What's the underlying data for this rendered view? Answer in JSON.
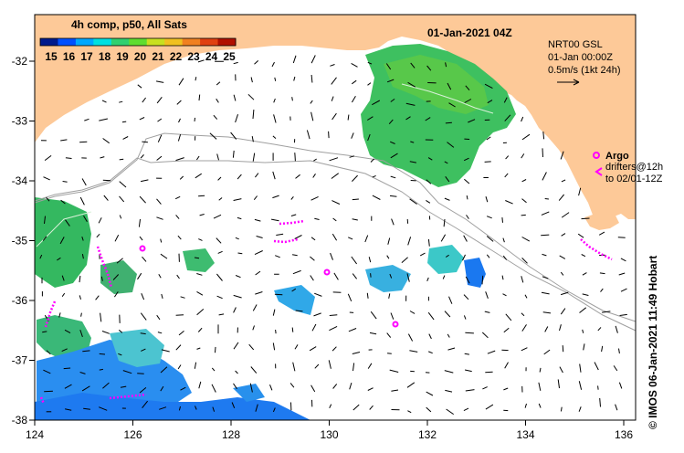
{
  "title": {
    "date": "01-Jan-2021 04Z"
  },
  "colorbar": {
    "title": "4h comp, p50, All Sats",
    "labels": [
      "15",
      "16",
      "17",
      "18",
      "19",
      "20",
      "21",
      "22",
      "23",
      "24",
      "25"
    ],
    "colors": [
      "#001a8c",
      "#0050ff",
      "#00a8ff",
      "#00e0e0",
      "#30d070",
      "#60dd30",
      "#c8e020",
      "#f0c020",
      "#f08020",
      "#e04010",
      "#b01000"
    ]
  },
  "current_info": {
    "line1": "NRT00 GSL",
    "line2": "01-Jan 00:00Z",
    "line3": "0.5m/s (1kt 24h)"
  },
  "argo_legend": {
    "title": "Argo",
    "line1": "drifters@12h",
    "line2": "to 02/01-12Z"
  },
  "axes": {
    "x_ticks": [
      "124",
      "126",
      "128",
      "130",
      "132",
      "134",
      "136"
    ],
    "y_ticks": [
      "-32",
      "-33",
      "-34",
      "-35",
      "-36",
      "-37",
      "-38"
    ]
  },
  "credit": "© IMOS 06-Jan-2021 11:49 Hobart",
  "colors": {
    "land": "#fdc998",
    "argo": "#ff00ff",
    "contour": "#a0a0a0"
  }
}
